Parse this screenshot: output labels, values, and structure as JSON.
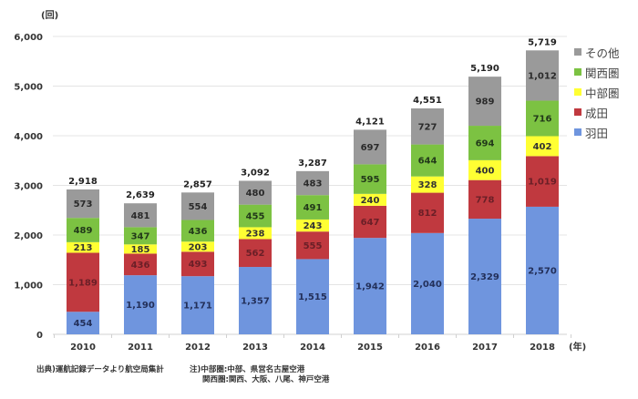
{
  "chart_data": {
    "type": "bar",
    "stacked": true,
    "title": "",
    "ylabel": "(回)",
    "xlabel": "(年)",
    "ylim": [
      0,
      6000
    ],
    "yticks": [
      0,
      1000,
      2000,
      3000,
      4000,
      5000,
      6000
    ],
    "ytick_labels": [
      "0",
      "1,000",
      "2,000",
      "3,000",
      "4,000",
      "5,000",
      "6,000"
    ],
    "grid": true,
    "legend_position": "right",
    "categories": [
      "2010",
      "2011",
      "2012",
      "2013",
      "2014",
      "2015",
      "2016",
      "2017",
      "2018"
    ],
    "series": [
      {
        "name": "羽田",
        "color": "#6f95de",
        "label_color": "#23305a",
        "values": [
          454,
          1190,
          1171,
          1357,
          1515,
          1942,
          2040,
          2329,
          2570
        ],
        "labels": [
          "454",
          "1,190",
          "1,171",
          "1,357",
          "1,515",
          "1,942",
          "2,040",
          "2,329",
          "2,570"
        ]
      },
      {
        "name": "成田",
        "color": "#c0393f",
        "label_color": "#6a1f27",
        "values": [
          1189,
          436,
          493,
          562,
          555,
          647,
          812,
          778,
          1019
        ],
        "labels": [
          "1,189",
          "436",
          "493",
          "562",
          "555",
          "647",
          "812",
          "778",
          "1,019"
        ]
      },
      {
        "name": "中部圏",
        "color": "#ffff33",
        "label_color": "#333333",
        "values": [
          213,
          185,
          203,
          238,
          243,
          240,
          328,
          400,
          402
        ],
        "labels": [
          "213",
          "185",
          "203",
          "238",
          "243",
          "240",
          "328",
          "400",
          "402"
        ]
      },
      {
        "name": "関西圏",
        "color": "#7cc242",
        "label_color": "#22391a",
        "values": [
          489,
          347,
          436,
          455,
          491,
          595,
          644,
          694,
          716
        ],
        "labels": [
          "489",
          "347",
          "436",
          "455",
          "491",
          "595",
          "644",
          "694",
          "716"
        ]
      },
      {
        "name": "その他",
        "color": "#9a9a9a",
        "label_color": "#2a2a2a",
        "values": [
          573,
          481,
          554,
          480,
          483,
          697,
          727,
          989,
          1012
        ],
        "labels": [
          "573",
          "481",
          "554",
          "480",
          "483",
          "697",
          "727",
          "989",
          "1,012"
        ]
      }
    ],
    "totals": [
      2918,
      2639,
      2857,
      3092,
      3287,
      4121,
      4551,
      5190,
      5719
    ],
    "total_labels": [
      "2,918",
      "2,639",
      "2,857",
      "3,092",
      "3,287",
      "4,121",
      "4,551",
      "5,190",
      "5,719"
    ],
    "legend_order": [
      "その他",
      "関西圏",
      "中部圏",
      "成田",
      "羽田"
    ]
  },
  "notes": {
    "source": "出典)運航記録データより航空局集計",
    "note_line1": "注)中部圏:中部、県営名古屋空港",
    "note_line2": "関西圏:関西、大阪、八尾、神戸空港"
  }
}
